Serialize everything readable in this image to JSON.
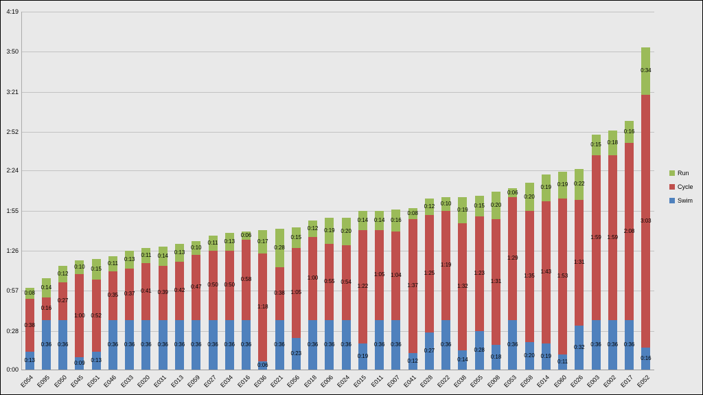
{
  "chart": {
    "background": "#e9e9e9",
    "gridline_color": "#c2c2c2",
    "label_color": "#000000"
  },
  "chart_data": {
    "type": "bar",
    "stacked": true,
    "title": "",
    "xlabel": "",
    "ylabel": "",
    "grid": true,
    "categories": [
      "E054",
      "E095",
      "E050",
      "E045",
      "E051",
      "E046",
      "E033",
      "E020",
      "E031",
      "E013",
      "E059",
      "E027",
      "E034",
      "E016",
      "E036",
      "E021",
      "E056",
      "E018",
      "E006",
      "E024",
      "E015",
      "E011",
      "E007",
      "E041",
      "E028",
      "E022",
      "E038",
      "E055",
      "E008",
      "E053",
      "E058",
      "E014",
      "E060",
      "E026",
      "E003",
      "E002",
      "E017",
      "E052"
    ],
    "series": [
      {
        "name": "Swim",
        "color": "#4f81bd",
        "values": [
          "0:13",
          "0:36",
          "0:36",
          "0:09",
          "0:13",
          "0:36",
          "0:36",
          "0:36",
          "0:36",
          "0:36",
          "0:36",
          "0:36",
          "0:36",
          "0:36",
          "0:06",
          "0:36",
          "0:23",
          "0:36",
          "0:36",
          "0:36",
          "0:19",
          "0:36",
          "0:36",
          "0:12",
          "0:27",
          "0:36",
          "0:14",
          "0:28",
          "0:18",
          "0:36",
          "0:20",
          "0:19",
          "0:11",
          "0:32",
          "0:36",
          "0:36",
          "0:36",
          "0:16"
        ]
      },
      {
        "name": "Cycle",
        "color": "#c0504d",
        "values": [
          "0:38",
          "0:16",
          "0:27",
          "1:00",
          "0:52",
          "0:35",
          "0:37",
          "0:41",
          "0:39",
          "0:42",
          "0:47",
          "0:50",
          "0:50",
          "0:58",
          "1:18",
          "0:38",
          "1:05",
          "1:00",
          "0:55",
          "0:54",
          "1:22",
          "1:05",
          "1:04",
          "1:37",
          "1:25",
          "1:19",
          "1:32",
          "1:23",
          "1:31",
          "1:29",
          "1:35",
          "1:43",
          "1:53",
          "1:31",
          "1:59",
          "1:59",
          "2:08",
          "3:03"
        ]
      },
      {
        "name": "Run",
        "color": "#9bbb59",
        "values": [
          "0:08",
          "0:14",
          "0:12",
          "0:10",
          "0:15",
          "0:11",
          "0:13",
          "0:11",
          "0:14",
          "0:13",
          "0:10",
          "0:11",
          "0:13",
          "0:06",
          "0:17",
          "0:28",
          "0:15",
          "0:12",
          "0:19",
          "0:20",
          "0:14",
          "0:14",
          "0:16",
          "0:08",
          "0:12",
          "0:10",
          "0:19",
          "0:15",
          "0:20",
          "0:06",
          "0:20",
          "0:19",
          "0:19",
          "0:22",
          "0:15",
          "0:18",
          "0:16",
          "0:34"
        ]
      }
    ],
    "y_ticks": [
      "0:00",
      "0:28",
      "0:57",
      "1:26",
      "1:55",
      "2:24",
      "2:52",
      "3:21",
      "3:50",
      "4:19"
    ],
    "ylim": [
      "0:00",
      "4:19"
    ],
    "legend": {
      "position": "right",
      "entries": [
        "Run",
        "Cycle",
        "Swim"
      ]
    }
  }
}
